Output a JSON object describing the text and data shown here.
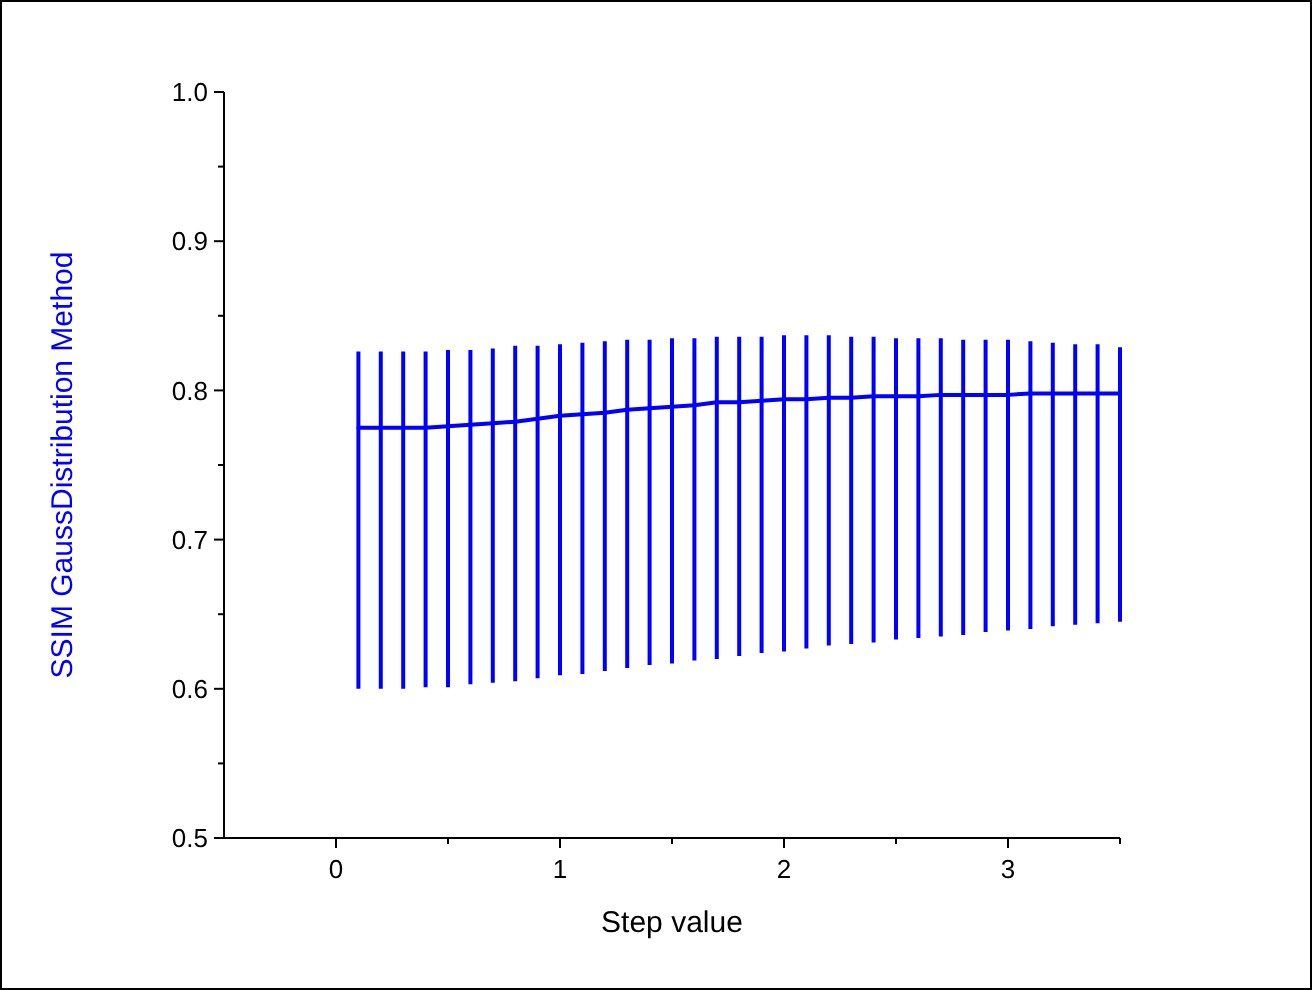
{
  "chart_data": {
    "type": "line",
    "xlabel": "Step value",
    "ylabel": "SSIM GaussDistribution Method",
    "x": [
      0.1,
      0.2,
      0.3,
      0.4,
      0.5,
      0.6,
      0.7,
      0.8,
      0.9,
      1.0,
      1.1,
      1.2,
      1.3,
      1.4,
      1.5,
      1.6,
      1.7,
      1.8,
      1.9,
      2.0,
      2.1,
      2.2,
      2.3,
      2.4,
      2.5,
      2.6,
      2.7,
      2.8,
      2.9,
      3.0,
      3.1,
      3.2,
      3.3,
      3.4,
      3.5
    ],
    "series": [
      {
        "color": "#0000ff",
        "values": [
          0.775,
          0.775,
          0.775,
          0.775,
          0.776,
          0.777,
          0.778,
          0.779,
          0.781,
          0.783,
          0.784,
          0.785,
          0.787,
          0.788,
          0.789,
          0.79,
          0.792,
          0.792,
          0.793,
          0.794,
          0.794,
          0.795,
          0.795,
          0.796,
          0.796,
          0.796,
          0.797,
          0.797,
          0.797,
          0.797,
          0.798,
          0.798,
          0.798,
          0.798,
          0.798
        ],
        "errors": [
          [
            0.6,
            0.826
          ],
          [
            0.6,
            0.826
          ],
          [
            0.6,
            0.826
          ],
          [
            0.601,
            0.826
          ],
          [
            0.601,
            0.827
          ],
          [
            0.603,
            0.827
          ],
          [
            0.604,
            0.828
          ],
          [
            0.605,
            0.83
          ],
          [
            0.607,
            0.83
          ],
          [
            0.609,
            0.831
          ],
          [
            0.61,
            0.832
          ],
          [
            0.612,
            0.833
          ],
          [
            0.614,
            0.834
          ],
          [
            0.616,
            0.834
          ],
          [
            0.617,
            0.835
          ],
          [
            0.619,
            0.835
          ],
          [
            0.62,
            0.836
          ],
          [
            0.622,
            0.836
          ],
          [
            0.624,
            0.836
          ],
          [
            0.625,
            0.837
          ],
          [
            0.627,
            0.837
          ],
          [
            0.629,
            0.837
          ],
          [
            0.63,
            0.836
          ],
          [
            0.631,
            0.836
          ],
          [
            0.633,
            0.835
          ],
          [
            0.634,
            0.835
          ],
          [
            0.635,
            0.835
          ],
          [
            0.636,
            0.834
          ],
          [
            0.638,
            0.834
          ],
          [
            0.639,
            0.834
          ],
          [
            0.64,
            0.833
          ],
          [
            0.642,
            0.832
          ],
          [
            0.643,
            0.831
          ],
          [
            0.644,
            0.831
          ],
          [
            0.645,
            0.829
          ]
        ]
      }
    ],
    "xlim": [
      -0.5,
      3.5
    ],
    "xticks": [
      0,
      {
        "value": 0.5,
        "label": null
      },
      1,
      {
        "value": 1.5,
        "label": null
      },
      2,
      {
        "value": 2.5,
        "label": null
      },
      3,
      {
        "value": 3.5,
        "label": null
      }
    ],
    "ylim": [
      0.5,
      1.0
    ],
    "yticks": [
      {
        "value": 0.5,
        "label": "0.5"
      },
      {
        "value": 0.55,
        "label": null
      },
      0.6,
      {
        "value": 0.65,
        "label": null
      },
      0.7,
      {
        "value": 0.75,
        "label": null
      },
      0.8,
      {
        "value": 0.85,
        "label": null
      },
      0.9,
      {
        "value": 0.95,
        "label": null
      },
      {
        "value": 1.0,
        "label": "1.0"
      }
    ],
    "grid": false,
    "marker": "none",
    "line_style": "solid"
  }
}
